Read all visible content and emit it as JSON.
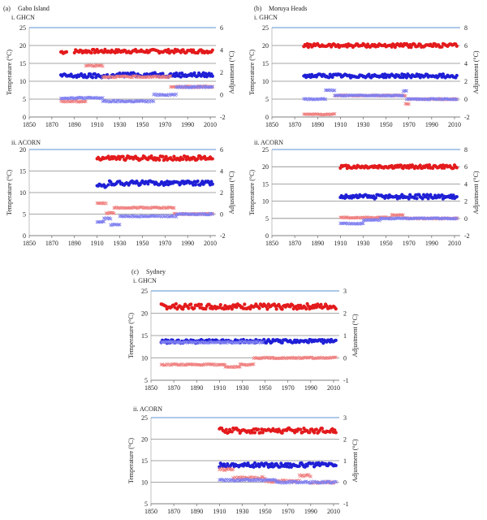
{
  "figure": {
    "a": {
      "letter": "(a)",
      "title": "Gabo Island"
    },
    "b": {
      "letter": "(b)",
      "title": "Moruya Heads"
    },
    "c": {
      "letter": "(c)",
      "title": "Sydney"
    }
  },
  "colors": {
    "max_temp": "#e31a1c",
    "min_temp": "#1f1fd6",
    "adj_max": "#f08080",
    "adj_min": "#8080f0",
    "grid": "#888888",
    "top_line": "#5b8fd6"
  },
  "chart_data": [
    {
      "id": "a-ghcn",
      "type": "scatter",
      "subtitle": "i.   GHCN",
      "ylabel": "Temperature (°C)",
      "y2label": "Adjustment (°C)",
      "xlim": [
        1850,
        2015
      ],
      "xticks": [
        1850,
        1870,
        1890,
        1910,
        1930,
        1950,
        1970,
        1990,
        2010
      ],
      "ylim": [
        0,
        25
      ],
      "yticks": [
        0,
        5,
        10,
        15,
        20,
        25
      ],
      "y2lim": [
        -2,
        6
      ],
      "y2ticks": [
        -2,
        0,
        2,
        4,
        6
      ],
      "series": [
        {
          "axis": "y",
          "color": "max",
          "marker": "dot",
          "segments": [
            [
              1878,
              1883,
              18.2
            ],
            [
              1890,
              2012,
              18.4
            ]
          ],
          "noise": 0.5
        },
        {
          "axis": "y",
          "color": "min",
          "marker": "dot",
          "segments": [
            [
              1878,
              1930,
              11.5
            ],
            [
              1930,
              2012,
              11.8
            ]
          ],
          "noise": 0.6
        },
        {
          "axis": "y2",
          "color": "adjmax",
          "marker": "x",
          "segments": [
            [
              1878,
              1900,
              -0.6
            ],
            [
              1900,
              1915,
              2.6
            ],
            [
              1915,
              1975,
              1.6
            ],
            [
              1975,
              2012,
              0.7
            ]
          ],
          "noise": 0.07
        },
        {
          "axis": "y2",
          "color": "adjmin",
          "marker": "x",
          "segments": [
            [
              1878,
              1915,
              -0.3
            ],
            [
              1915,
              1960,
              -0.6
            ],
            [
              1960,
              1980,
              0.0
            ],
            [
              1980,
              2012,
              0.7
            ]
          ],
          "noise": 0.07
        }
      ]
    },
    {
      "id": "a-acorn",
      "type": "scatter",
      "subtitle": "ii.   ACORN",
      "ylabel": "Temperature (°C)",
      "y2label": "Adjustment (°C)",
      "xlim": [
        1850,
        2015
      ],
      "xticks": [
        1850,
        1870,
        1890,
        1910,
        1930,
        1950,
        1970,
        1990,
        2010
      ],
      "ylim": [
        0,
        20
      ],
      "yticks": [
        0,
        5,
        10,
        15,
        20
      ],
      "y2lim": [
        -2,
        6
      ],
      "y2ticks": [
        -2,
        0,
        2,
        4,
        6
      ],
      "series": [
        {
          "axis": "y",
          "color": "max",
          "marker": "dot",
          "segments": [
            [
              1910,
              2012,
              18.0
            ]
          ],
          "noise": 0.5
        },
        {
          "axis": "y",
          "color": "min",
          "marker": "dot",
          "segments": [
            [
              1910,
              1918,
              11.5
            ],
            [
              1920,
              2012,
              12.2
            ]
          ],
          "noise": 0.5
        },
        {
          "axis": "y2",
          "color": "adjmax",
          "marker": "x",
          "segments": [
            [
              1910,
              1918,
              1.0
            ],
            [
              1918,
              1925,
              0.1
            ],
            [
              1925,
              1978,
              0.6
            ],
            [
              1978,
              2012,
              0.0
            ]
          ],
          "noise": 0.06
        },
        {
          "axis": "y2",
          "color": "adjmin",
          "marker": "x",
          "segments": [
            [
              1910,
              1916,
              -0.7
            ],
            [
              1916,
              1922,
              -0.4
            ],
            [
              1922,
              1930,
              -1.0
            ],
            [
              1930,
              1980,
              -0.2
            ],
            [
              1980,
              2012,
              0.0
            ]
          ],
          "noise": 0.06
        }
      ]
    },
    {
      "id": "b-ghcn",
      "type": "scatter",
      "subtitle": "i.   GHCN",
      "ylabel": "Temperature (°C)",
      "y2label": "Adjustment (°C)",
      "xlim": [
        1850,
        2015
      ],
      "xticks": [
        1850,
        1870,
        1890,
        1910,
        1930,
        1950,
        1970,
        1990,
        2010
      ],
      "ylim": [
        0,
        25
      ],
      "yticks": [
        0,
        5,
        10,
        15,
        20,
        25
      ],
      "y2lim": [
        -2,
        8
      ],
      "y2ticks": [
        -2,
        0,
        2,
        4,
        6,
        8
      ],
      "series": [
        {
          "axis": "y",
          "color": "max",
          "marker": "dot",
          "segments": [
            [
              1878,
              2012,
              20.0
            ]
          ],
          "noise": 0.5
        },
        {
          "axis": "y",
          "color": "min",
          "marker": "dot",
          "segments": [
            [
              1878,
              2012,
              11.5
            ]
          ],
          "noise": 0.5
        },
        {
          "axis": "y2",
          "color": "adjmax",
          "marker": "x",
          "segments": [
            [
              1878,
              1905,
              -1.7
            ],
            [
              1905,
              1967,
              0.4
            ],
            [
              1967,
              1970,
              -0.5
            ],
            [
              1970,
              2012,
              0.0
            ]
          ],
          "noise": 0.06
        },
        {
          "axis": "y2",
          "color": "adjmin",
          "marker": "x",
          "segments": [
            [
              1878,
              1897,
              0.0
            ],
            [
              1897,
              1905,
              1.0
            ],
            [
              1905,
              1965,
              0.4
            ],
            [
              1965,
              1968,
              0.9
            ],
            [
              1968,
              2012,
              0.0
            ]
          ],
          "noise": 0.06
        }
      ]
    },
    {
      "id": "b-acorn",
      "type": "scatter",
      "subtitle": "ii.   ACORN",
      "ylabel": "Temperature (°C)",
      "y2label": "Adjustment (°C)",
      "xlim": [
        1850,
        2015
      ],
      "xticks": [
        1850,
        1870,
        1890,
        1910,
        1930,
        1950,
        1970,
        1990,
        2010
      ],
      "ylim": [
        0,
        25
      ],
      "yticks": [
        0,
        5,
        10,
        15,
        20,
        25
      ],
      "y2lim": [
        -2,
        8
      ],
      "y2ticks": [
        -2,
        0,
        2,
        4,
        6,
        8
      ],
      "series": [
        {
          "axis": "y",
          "color": "max",
          "marker": "dot",
          "segments": [
            [
              1910,
              2012,
              20.0
            ]
          ],
          "noise": 0.5
        },
        {
          "axis": "y",
          "color": "min",
          "marker": "dot",
          "segments": [
            [
              1910,
              2012,
              11.3
            ]
          ],
          "noise": 0.6
        },
        {
          "axis": "y2",
          "color": "adjmax",
          "marker": "x",
          "segments": [
            [
              1910,
              1955,
              0.1
            ],
            [
              1955,
              1965,
              0.4
            ],
            [
              1965,
              2012,
              0.0
            ]
          ],
          "noise": 0.06
        },
        {
          "axis": "y2",
          "color": "adjmin",
          "marker": "x",
          "segments": [
            [
              1910,
              1930,
              -0.6
            ],
            [
              1930,
              1945,
              -0.2
            ],
            [
              1945,
              2012,
              0.0
            ]
          ],
          "noise": 0.06
        }
      ]
    },
    {
      "id": "c-ghcn",
      "type": "scatter",
      "subtitle": "i.   GHCN",
      "ylabel": "Temperature (°C)",
      "y2label": "Adjustment (°C)",
      "xlim": [
        1850,
        2015
      ],
      "xticks": [
        1850,
        1870,
        1890,
        1910,
        1930,
        1950,
        1970,
        1990,
        2010
      ],
      "ylim": [
        5,
        25
      ],
      "yticks": [
        5,
        10,
        15,
        20,
        25
      ],
      "y2lim": [
        -1,
        3
      ],
      "y2ticks": [
        -1,
        0,
        1,
        2,
        3
      ],
      "series": [
        {
          "axis": "y",
          "color": "max",
          "marker": "dot",
          "segments": [
            [
              1859,
              2012,
              21.5
            ]
          ],
          "noise": 0.6
        },
        {
          "axis": "y",
          "color": "min",
          "marker": "dot",
          "segments": [
            [
              1859,
              2012,
              13.7
            ]
          ],
          "noise": 0.4
        },
        {
          "axis": "y2",
          "color": "adjmax",
          "marker": "x",
          "segments": [
            [
              1859,
              1915,
              -0.3
            ],
            [
              1915,
              1928,
              -0.4
            ],
            [
              1928,
              1940,
              -0.3
            ],
            [
              1940,
              2012,
              0.0
            ]
          ],
          "noise": 0.03
        },
        {
          "axis": "y2",
          "color": "adjmin",
          "marker": "x",
          "segments": [
            [
              1859,
              1948,
              0.7
            ]
          ],
          "noise": 0.03
        }
      ]
    },
    {
      "id": "c-acorn",
      "type": "scatter",
      "subtitle": "ii.   ACORN",
      "ylabel": "Temperature (°C)",
      "y2label": "Adjustment (°C)",
      "xlim": [
        1850,
        2015
      ],
      "xticks": [
        1850,
        1870,
        1890,
        1910,
        1930,
        1950,
        1970,
        1990,
        2010
      ],
      "ylim": [
        5,
        25
      ],
      "yticks": [
        5,
        10,
        15,
        20,
        25
      ],
      "y2lim": [
        -1,
        3
      ],
      "y2ticks": [
        -1,
        0,
        1,
        2,
        3
      ],
      "series": [
        {
          "axis": "y",
          "color": "max",
          "marker": "dot",
          "segments": [
            [
              1910,
              2012,
              22.0
            ]
          ],
          "noise": 0.6
        },
        {
          "axis": "y",
          "color": "min",
          "marker": "dot",
          "segments": [
            [
              1910,
              2012,
              14.0
            ]
          ],
          "noise": 0.5
        },
        {
          "axis": "y2",
          "color": "adjmax",
          "marker": "x",
          "segments": [
            [
              1910,
              1922,
              0.6
            ],
            [
              1922,
              1950,
              0.2
            ],
            [
              1950,
              1980,
              0.05
            ],
            [
              1980,
              1990,
              0.3
            ],
            [
              1990,
              2012,
              0.0
            ]
          ],
          "noise": 0.05
        },
        {
          "axis": "y2",
          "color": "adjmin",
          "marker": "x",
          "segments": [
            [
              1910,
              1960,
              0.1
            ],
            [
              1960,
              2012,
              0.0
            ]
          ],
          "noise": 0.04
        }
      ]
    }
  ]
}
